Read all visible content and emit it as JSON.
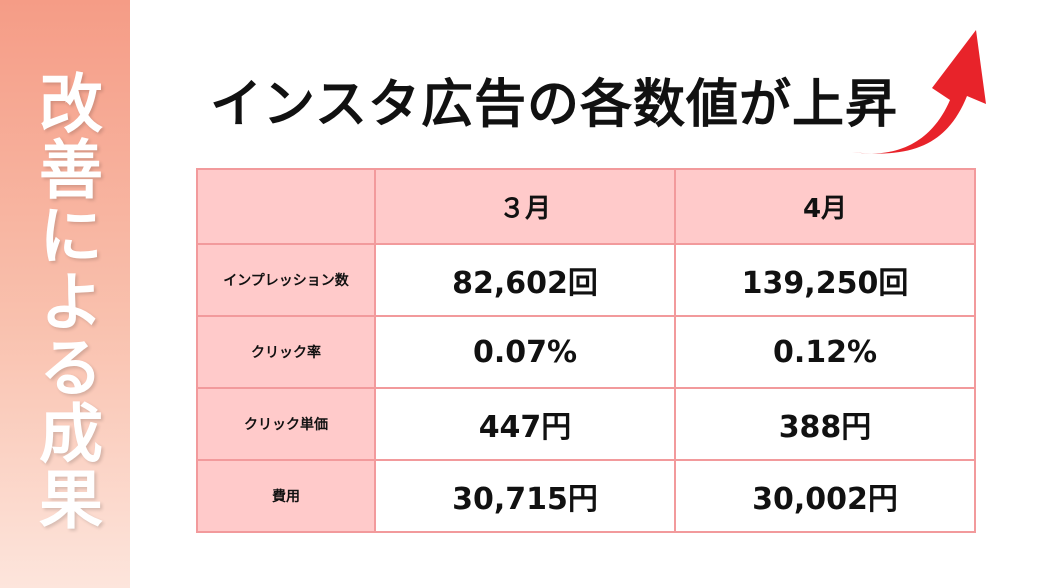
{
  "sidebar": {
    "title": "改善による成果"
  },
  "header": {
    "title": "インスタ広告の各数値が上昇"
  },
  "table": {
    "columns": [
      "３月",
      "4月"
    ],
    "rows": [
      {
        "label": "インプレッション数",
        "values": [
          "82,602回",
          "139,250回"
        ]
      },
      {
        "label": "クリック率",
        "values": [
          "0.07%",
          "0.12%"
        ]
      },
      {
        "label": "クリック単価",
        "values": [
          "447円",
          "388円"
        ]
      },
      {
        "label": "費用",
        "values": [
          "30,715円",
          "30,002円"
        ]
      }
    ]
  },
  "colors": {
    "accent": "#e8232a",
    "header_fill": "#ffcaca",
    "border": "#f29a9c",
    "side_band_top": "#f59c86",
    "side_band_bottom": "#fde5dc"
  },
  "icons": {
    "arrow": "up-right-arrow-icon"
  }
}
